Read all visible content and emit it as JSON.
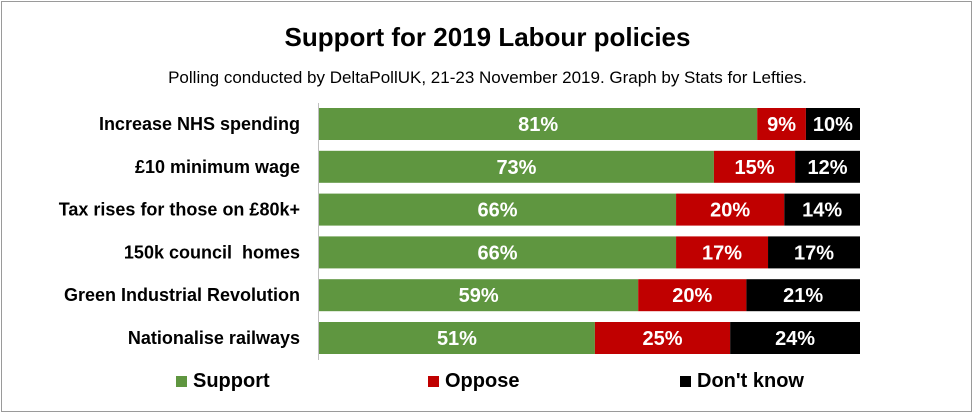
{
  "chart_data": {
    "type": "bar",
    "orientation": "horizontal",
    "stacked": true,
    "title": "Support for 2019 Labour policies",
    "subtitle": "Polling conducted by DeltaPollUK, 21-23 November 2019. Graph by Stats for Lefties.",
    "categories": [
      "Increase NHS spending",
      "£10 minimum wage",
      "Tax rises for those on £80k+",
      "150k council  homes",
      "Green Industrial Revolution",
      "Nationalise railways"
    ],
    "series": [
      {
        "name": "Support",
        "color": "#5f9640",
        "values": [
          81,
          73,
          66,
          66,
          59,
          51
        ]
      },
      {
        "name": "Oppose",
        "color": "#c00000",
        "values": [
          9,
          15,
          20,
          17,
          20,
          25
        ]
      },
      {
        "name": "Don't know",
        "color": "#000000",
        "values": [
          10,
          12,
          14,
          17,
          21,
          24
        ]
      }
    ],
    "value_suffix": "%",
    "xlim": [
      0,
      100
    ],
    "grid": false,
    "legend_position": "bottom"
  }
}
